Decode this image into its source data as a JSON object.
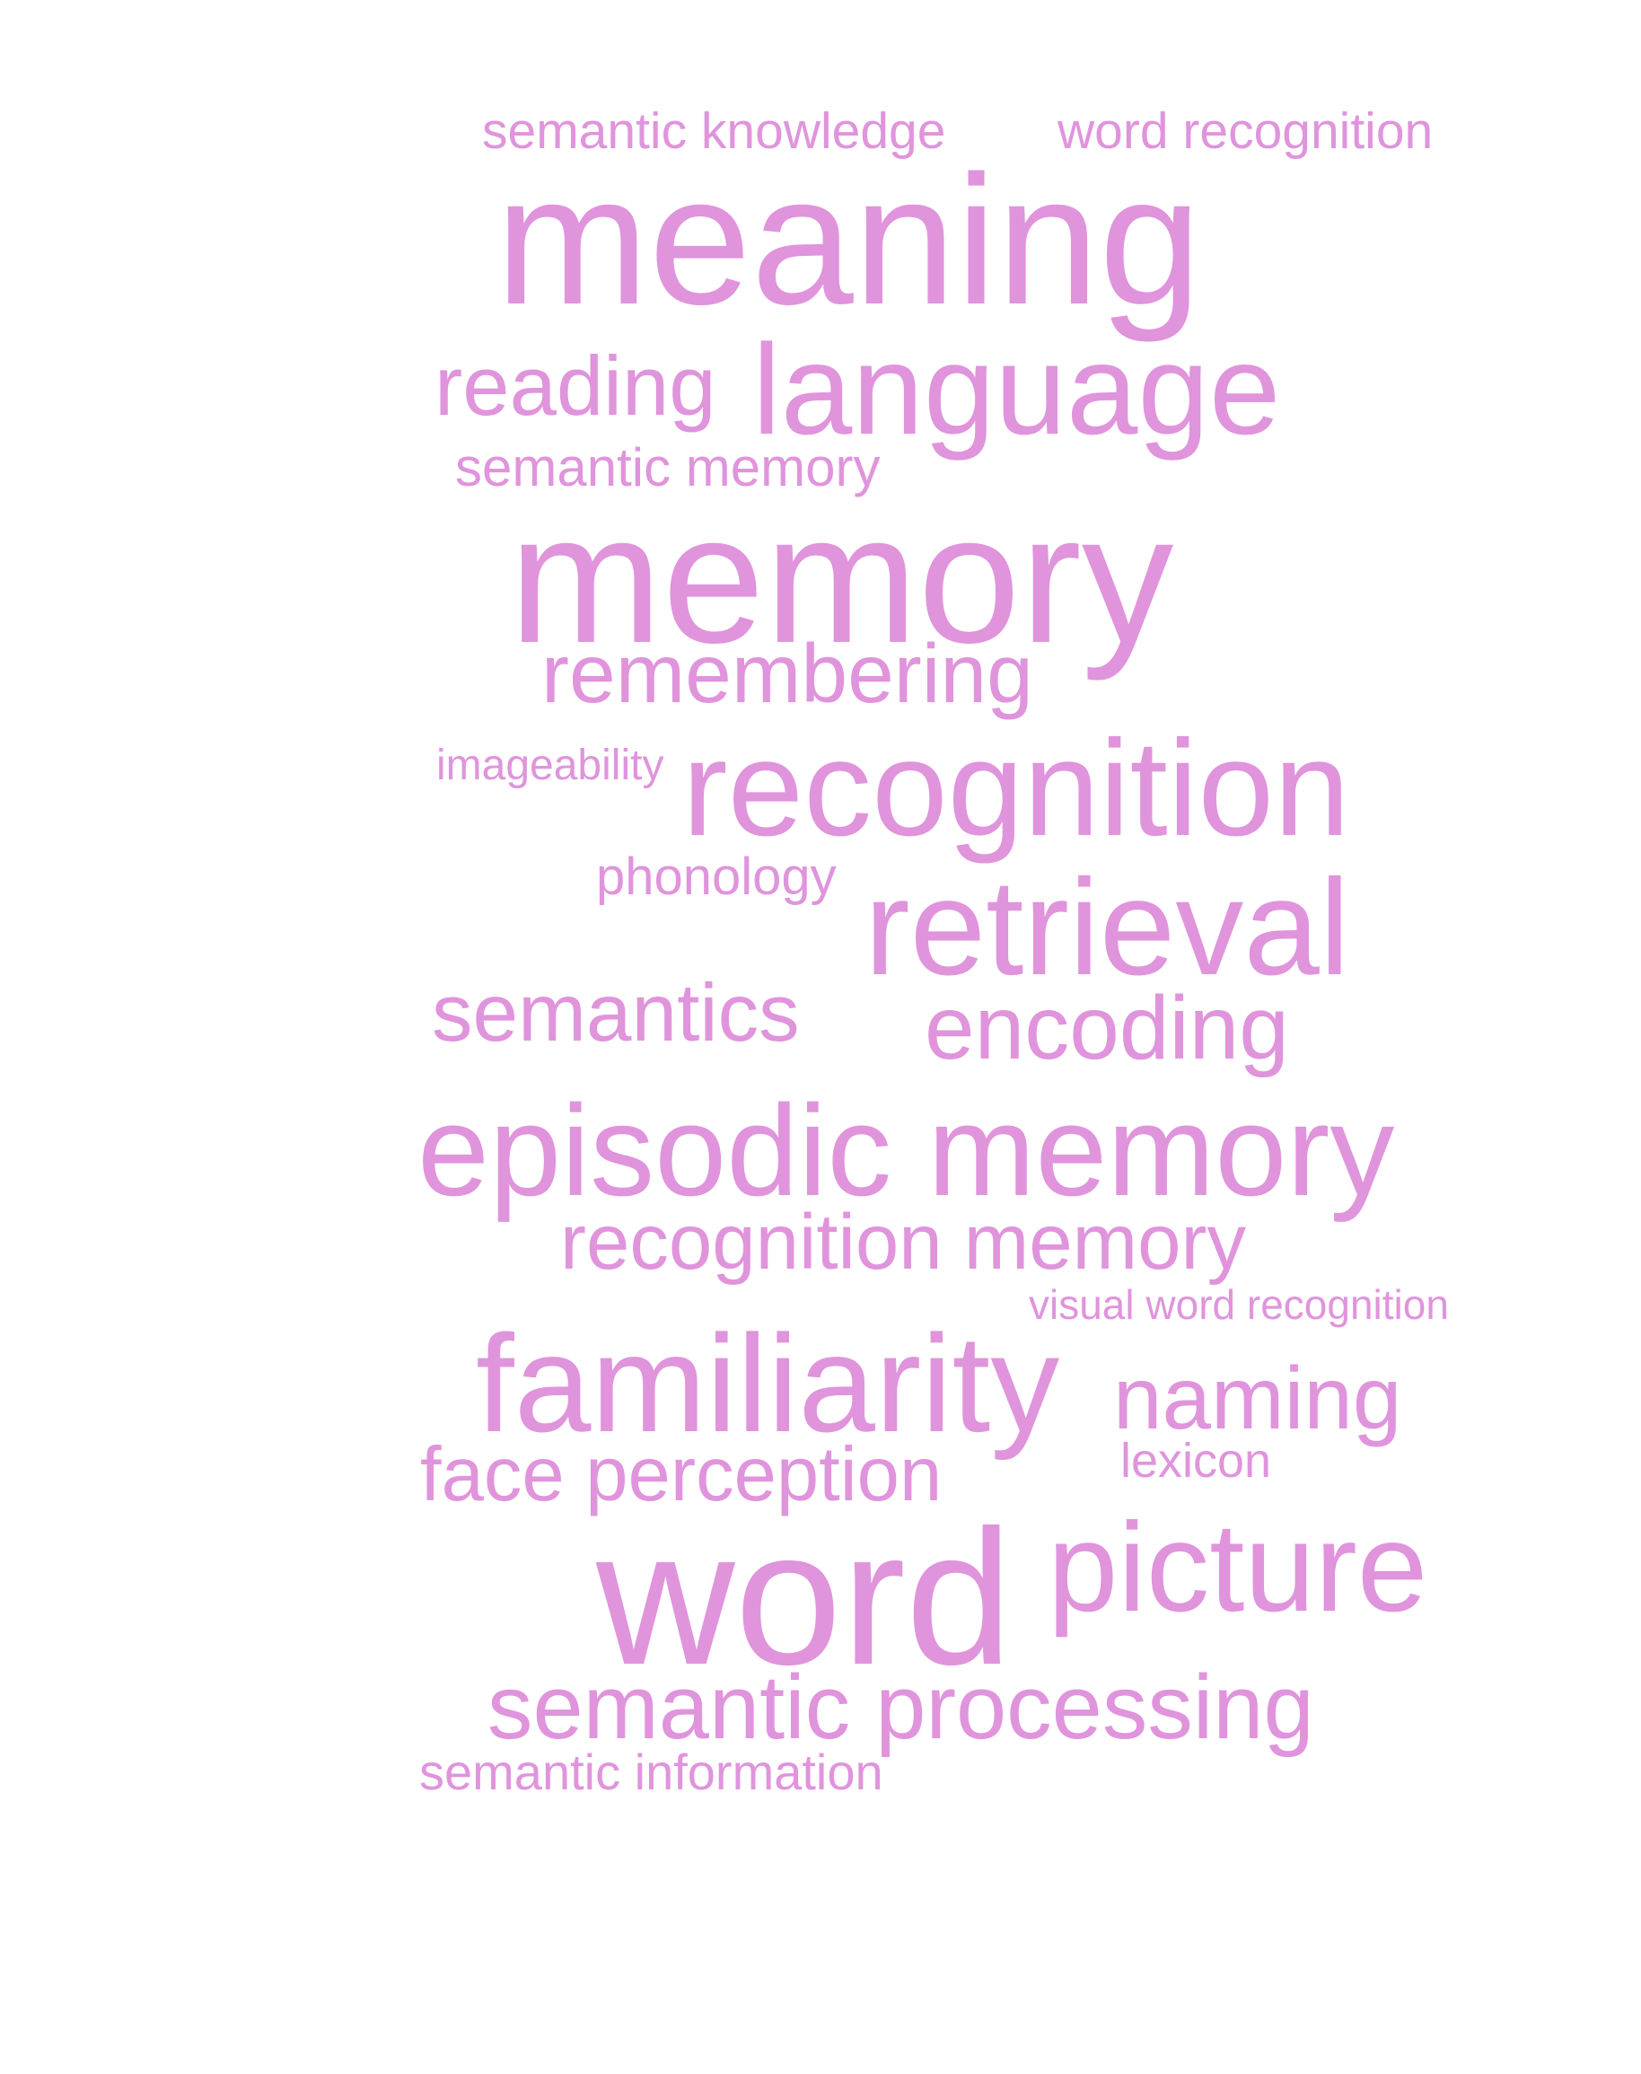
{
  "word_color": "#e094dc",
  "background_color": "#ffffff",
  "words": [
    "semantic knowledge",
    "word recognition",
    "meaning",
    "reading",
    "language",
    "semantic memory",
    "memory",
    "remembering",
    "imageability",
    "recognition",
    "phonology",
    "retrieval",
    "semantics",
    "encoding",
    "episodic memory",
    "recognition memory",
    "visual word recognition",
    "familiarity",
    "naming",
    "face perception",
    "lexicon",
    "word",
    "picture",
    "semantic processing",
    "semantic information"
  ]
}
